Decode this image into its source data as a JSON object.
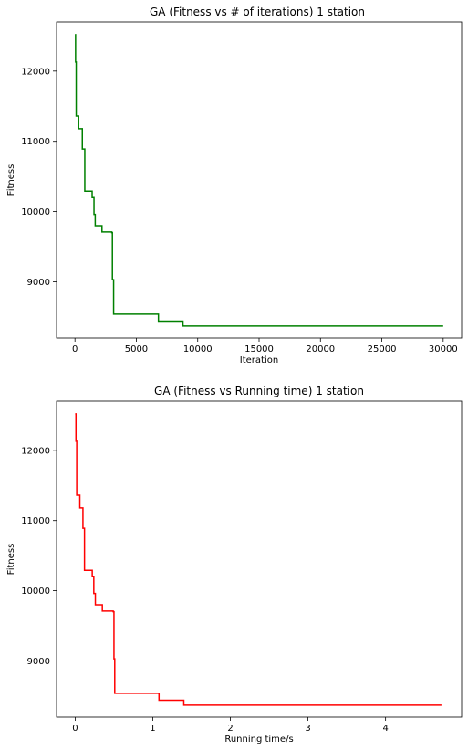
{
  "chart_data": [
    {
      "type": "line",
      "title": "GA (Fitness vs # of iterations)   1 station",
      "xlabel": "Iteration",
      "ylabel": "Fitness",
      "xlim": [
        -1500,
        31500
      ],
      "ylim": [
        8200,
        12700
      ],
      "x_ticks": [
        0,
        5000,
        10000,
        15000,
        20000,
        25000,
        30000
      ],
      "y_ticks": [
        9000,
        10000,
        11000,
        12000
      ],
      "grid": false,
      "line_style": "step",
      "series": [
        {
          "color": "#008000",
          "x": [
            0,
            50,
            100,
            200,
            300,
            500,
            600,
            700,
            800,
            1100,
            1400,
            1550,
            1650,
            2000,
            2200,
            2800,
            3000,
            3050,
            3150,
            4500,
            5000,
            6800,
            8000,
            8800,
            10000,
            15000,
            20000,
            25000,
            30000
          ],
          "y": [
            12520,
            12130,
            11360,
            11360,
            11180,
            11180,
            10890,
            10890,
            10290,
            10290,
            10200,
            9960,
            9800,
            9800,
            9710,
            9710,
            9700,
            9030,
            8540,
            8540,
            8540,
            8440,
            8440,
            8370,
            8370,
            8370,
            8370,
            8370,
            8370
          ]
        }
      ]
    },
    {
      "type": "line",
      "title": "GA (Fitness vs Running time)   1 station",
      "xlabel": "Running time/s",
      "ylabel": "Fitness",
      "xlim": [
        -0.24,
        4.98
      ],
      "ylim": [
        8200,
        12700
      ],
      "x_ticks": [
        0,
        1,
        2,
        3,
        4
      ],
      "y_ticks": [
        9000,
        10000,
        11000,
        12000
      ],
      "grid": false,
      "line_style": "step",
      "series": [
        {
          "color": "#ff0000",
          "x": [
            0,
            0.01,
            0.02,
            0.04,
            0.06,
            0.08,
            0.1,
            0.11,
            0.12,
            0.17,
            0.22,
            0.24,
            0.26,
            0.32,
            0.35,
            0.46,
            0.49,
            0.5,
            0.51,
            0.8,
            1.08,
            1.4,
            2.0,
            3.0,
            4.0,
            4.72
          ],
          "y": [
            12520,
            12130,
            11360,
            11360,
            11180,
            11180,
            10890,
            10890,
            10290,
            10290,
            10200,
            9960,
            9800,
            9800,
            9710,
            9710,
            9700,
            9030,
            8540,
            8540,
            8440,
            8370,
            8370,
            8370,
            8370,
            8370
          ]
        }
      ]
    }
  ]
}
